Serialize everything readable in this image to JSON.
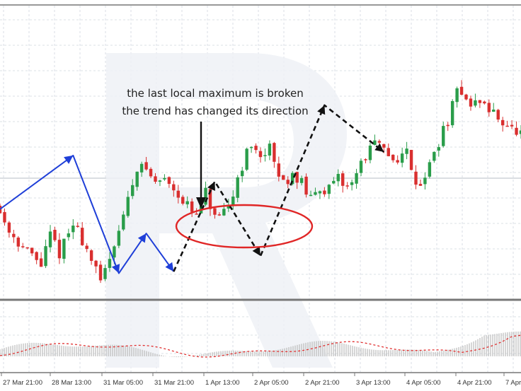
{
  "chart_data": {
    "type": "candlestick",
    "grid": true,
    "x_ticks": [
      "27 Mar 21:00",
      "28 Mar 13:00",
      "31 Mar 05:00",
      "31 Mar 21:00",
      "1 Apr 13:00",
      "2 Apr 05:00",
      "2 Apr 21:00",
      "3 Apr 13:00",
      "4 Apr 05:00",
      "4 Apr 21:00",
      "7 Apr"
    ],
    "annotation": {
      "lines": [
        "the last local maximum is broken",
        "the trend has changed its direction"
      ]
    },
    "price_path": [
      {
        "i": 0,
        "p": 0.7
      },
      {
        "i": 3,
        "p": 0.55
      },
      {
        "i": 6,
        "p": 0.45
      },
      {
        "i": 8,
        "p": 0.4
      },
      {
        "i": 10,
        "p": 0.35
      },
      {
        "i": 12,
        "p": 0.52
      },
      {
        "i": 14,
        "p": 0.42
      },
      {
        "i": 17,
        "p": 0.58
      },
      {
        "i": 18,
        "p": 0.55
      },
      {
        "i": 21,
        "p": 0.38
      },
      {
        "i": 23,
        "p": 0.24
      },
      {
        "i": 26,
        "p": 0.48
      },
      {
        "i": 29,
        "p": 0.72
      },
      {
        "i": 31,
        "p": 0.92
      },
      {
        "i": 33,
        "p": 0.9
      },
      {
        "i": 35,
        "p": 0.82
      },
      {
        "i": 37,
        "p": 0.85
      },
      {
        "i": 39,
        "p": 0.8
      },
      {
        "i": 41,
        "p": 0.72
      },
      {
        "i": 44,
        "p": 0.62
      },
      {
        "i": 46,
        "p": 0.76
      },
      {
        "i": 47,
        "p": 0.68
      },
      {
        "i": 49,
        "p": 0.6
      },
      {
        "i": 51,
        "p": 0.68
      },
      {
        "i": 53,
        "p": 0.85
      },
      {
        "i": 55,
        "p": 1.0
      },
      {
        "i": 57,
        "p": 1.02
      },
      {
        "i": 59,
        "p": 0.98
      },
      {
        "i": 60,
        "p": 1.02
      },
      {
        "i": 61,
        "p": 0.92
      },
      {
        "i": 63,
        "p": 0.82
      },
      {
        "i": 65,
        "p": 0.88
      },
      {
        "i": 67,
        "p": 0.82
      },
      {
        "i": 69,
        "p": 0.72
      },
      {
        "i": 71,
        "p": 0.8
      },
      {
        "i": 73,
        "p": 0.78
      },
      {
        "i": 75,
        "p": 0.84
      },
      {
        "i": 77,
        "p": 0.8
      },
      {
        "i": 79,
        "p": 0.88
      },
      {
        "i": 81,
        "p": 0.98
      },
      {
        "i": 83,
        "p": 1.05
      },
      {
        "i": 85,
        "p": 1.0
      },
      {
        "i": 87,
        "p": 0.96
      },
      {
        "i": 89,
        "p": 0.98
      },
      {
        "i": 90,
        "p": 1.0
      },
      {
        "i": 92,
        "p": 0.84
      },
      {
        "i": 93,
        "p": 0.82
      },
      {
        "i": 95,
        "p": 0.92
      },
      {
        "i": 97,
        "p": 1.06
      },
      {
        "i": 99,
        "p": 1.18
      },
      {
        "i": 101,
        "p": 1.34
      },
      {
        "i": 102,
        "p": 1.36
      },
      {
        "i": 104,
        "p": 1.26
      },
      {
        "i": 106,
        "p": 1.3
      },
      {
        "i": 108,
        "p": 1.24
      },
      {
        "i": 110,
        "p": 1.2
      },
      {
        "i": 112,
        "p": 1.16
      },
      {
        "i": 114,
        "p": 1.1
      }
    ],
    "trend_lines": [
      {
        "color": "#1f3fd8",
        "style": "solid",
        "points": [
          [
            0,
            0.67
          ],
          [
            16,
            0.98
          ],
          [
            26,
            0.3
          ],
          [
            32,
            0.53
          ],
          [
            38,
            0.31
          ]
        ]
      },
      {
        "color": "#111111",
        "style": "dashed",
        "points": [
          [
            38,
            0.31
          ],
          [
            47,
            0.83
          ],
          [
            57,
            0.4
          ],
          [
            71,
            1.27
          ],
          [
            84,
            1.0
          ]
        ]
      }
    ],
    "oscillator": {
      "series": [
        {
          "name": "",
          "kind": "histogram",
          "color": "#bbbbbb"
        },
        {
          "name": "",
          "kind": "signal-line",
          "color": "#e03030",
          "style": "dashed"
        }
      ]
    },
    "colors": {
      "bull": "#2a9d4a",
      "bear": "#d92f2f",
      "trend_up_down": "#1f3fd8",
      "trend_dashed": "#111111",
      "highlight_ellipse": "#e02626",
      "separator": "#777777"
    }
  }
}
